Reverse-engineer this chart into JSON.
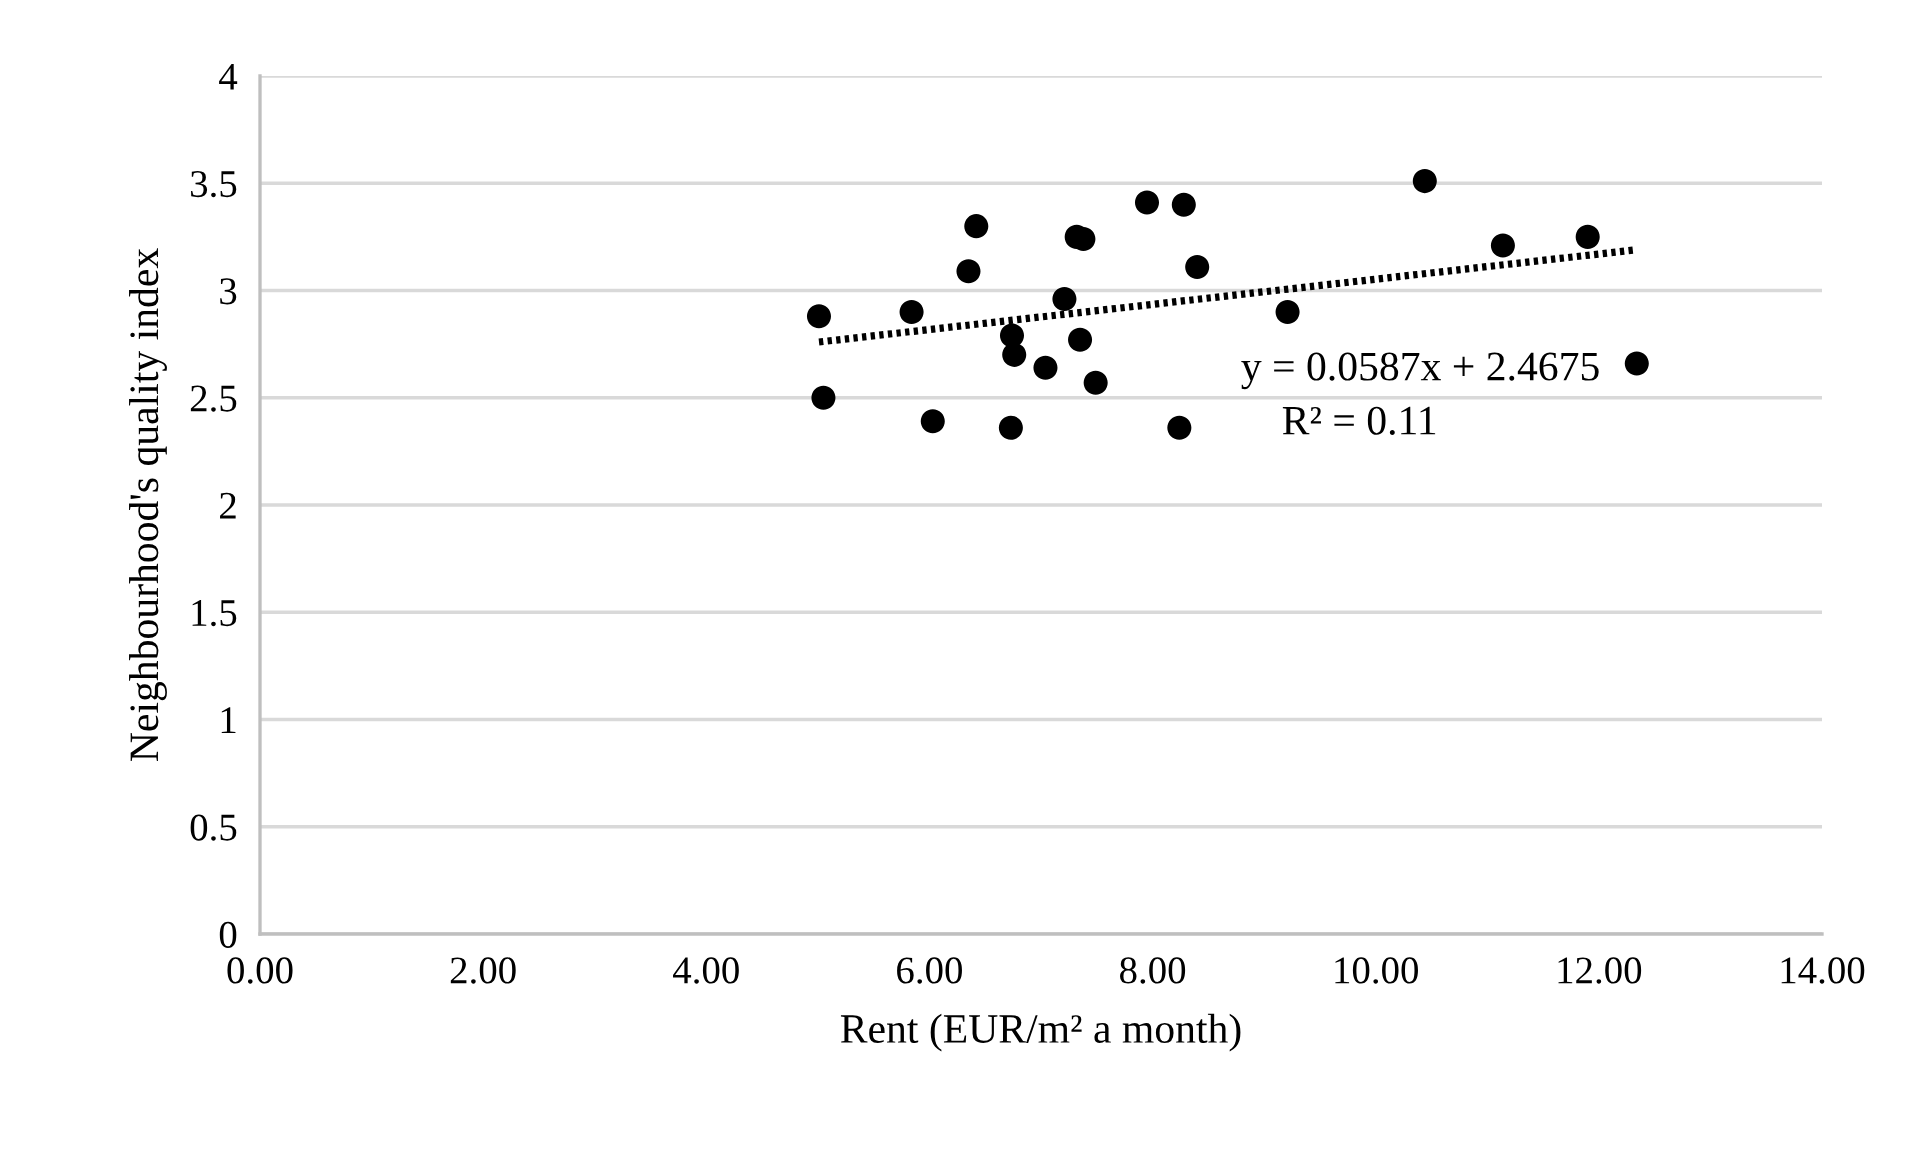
{
  "chart_data": {
    "type": "scatter",
    "xlabel": "Rent (EUR/m² a month)",
    "ylabel": "Neighbourhood's quality index",
    "xlim": [
      0,
      14
    ],
    "ylim": [
      0,
      4
    ],
    "xticks": [
      {
        "value": 0,
        "label": "0.00"
      },
      {
        "value": 2,
        "label": "2.00"
      },
      {
        "value": 4,
        "label": "4.00"
      },
      {
        "value": 6,
        "label": "6.00"
      },
      {
        "value": 8,
        "label": "8.00"
      },
      {
        "value": 10,
        "label": "10.00"
      },
      {
        "value": 12,
        "label": "12.00"
      },
      {
        "value": 14,
        "label": "14.00"
      }
    ],
    "yticks": [
      0,
      0.5,
      1,
      1.5,
      2,
      2.5,
      3,
      3.5,
      4
    ],
    "grid": "y",
    "legend": false,
    "marker": "circle",
    "series": [
      {
        "color": "#000000",
        "x": [
          5.01,
          5.05,
          5.84,
          6.03,
          6.35,
          6.42,
          6.74,
          6.76,
          6.73,
          7.04,
          7.21,
          7.32,
          7.38,
          7.35,
          7.49,
          7.95,
          8.28,
          8.24,
          8.4,
          9.21,
          10.44,
          11.14,
          11.9,
          12.34
        ],
        "values": [
          2.88,
          2.5,
          2.9,
          2.39,
          3.09,
          3.3,
          2.79,
          2.7,
          2.36,
          2.64,
          2.96,
          3.25,
          3.24,
          2.77,
          2.57,
          3.41,
          3.4,
          2.36,
          3.11,
          2.9,
          3.51,
          3.21,
          3.25,
          2.66
        ]
      },
      {
        "type": "line",
        "color": "#000000",
        "line_style": "dotted",
        "marker": "none",
        "x": [
          5.01,
          12.34
        ],
        "values": [
          2.76,
          3.19
        ]
      }
    ],
    "annotations": [
      "y = 0.0587x + 2.4675",
      "R² = 0.11"
    ]
  }
}
